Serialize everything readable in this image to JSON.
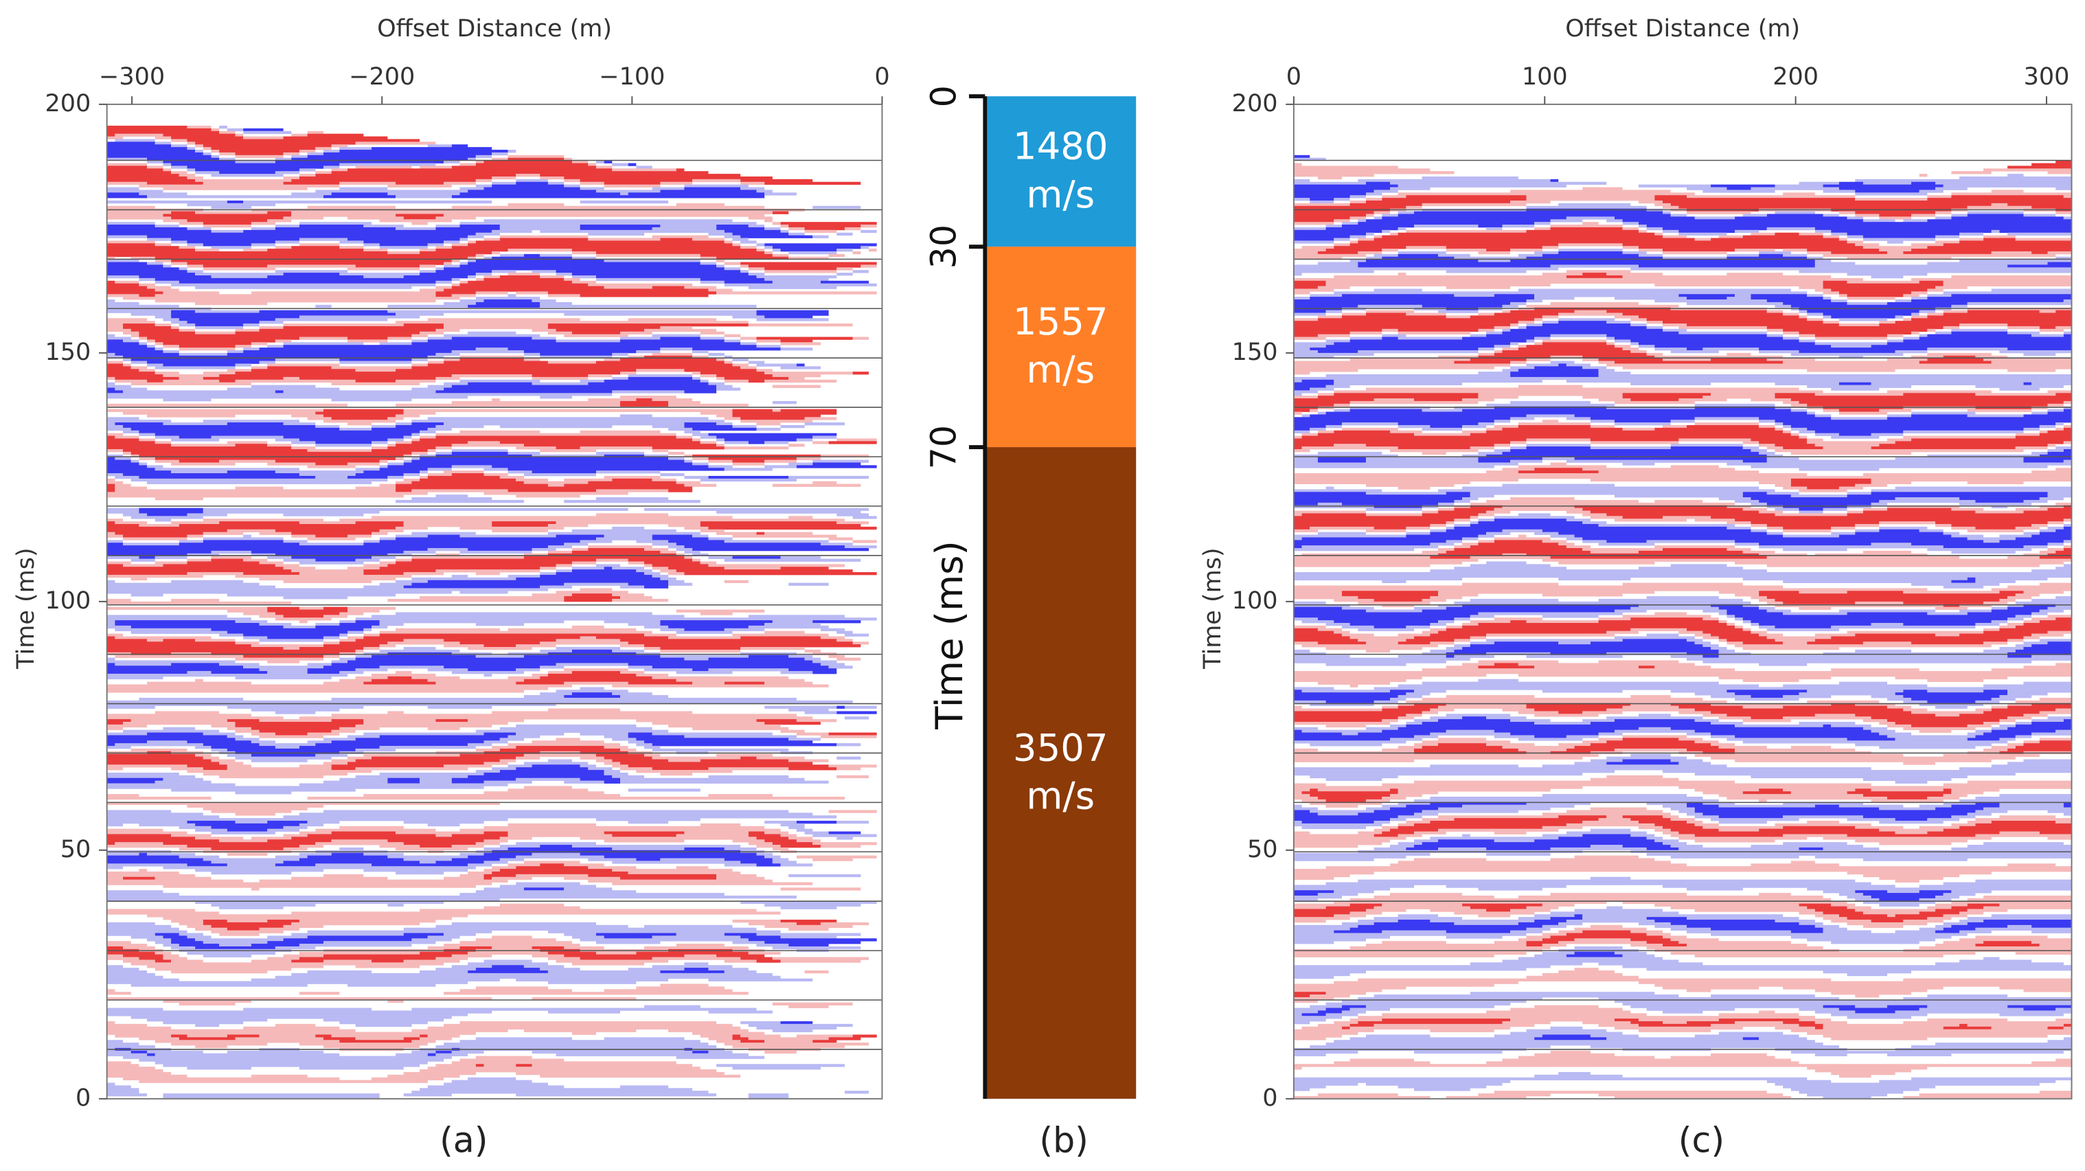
{
  "chart_data": [
    {
      "type": "seismic",
      "title": "Offset Distance (m)",
      "ylabel": "Time (ms)",
      "caption": "(a)",
      "xlim": [
        -310,
        0
      ],
      "xticks": [
        {
          "value": -300,
          "label": "−300"
        },
        {
          "value": -200,
          "label": "−200"
        },
        {
          "value": -100,
          "label": "−100"
        },
        0
      ],
      "ylim": [
        0,
        200
      ],
      "yticks": [
        0,
        50,
        100,
        150,
        200
      ]
    },
    {
      "type": "layers",
      "ylabel": "Time (ms)",
      "caption": "(b)",
      "unit": "m/s",
      "values": [
        1480,
        1557,
        3507
      ],
      "colors": [
        "#1f9bd7",
        "#ff7f27",
        "#8b3a08"
      ],
      "layer_bounds": [
        0,
        30,
        70,
        200
      ],
      "ylim": [
        0,
        200
      ],
      "yticks": [
        0,
        30,
        70
      ]
    },
    {
      "type": "seismic",
      "title": "Offset Distance (m)",
      "ylabel": "Time (ms)",
      "caption": "(c)",
      "xlim": [
        0,
        310
      ],
      "xticks": [
        0,
        100,
        200,
        300
      ],
      "ylim": [
        0,
        200
      ],
      "yticks": [
        0,
        50,
        100,
        150,
        200
      ]
    }
  ]
}
